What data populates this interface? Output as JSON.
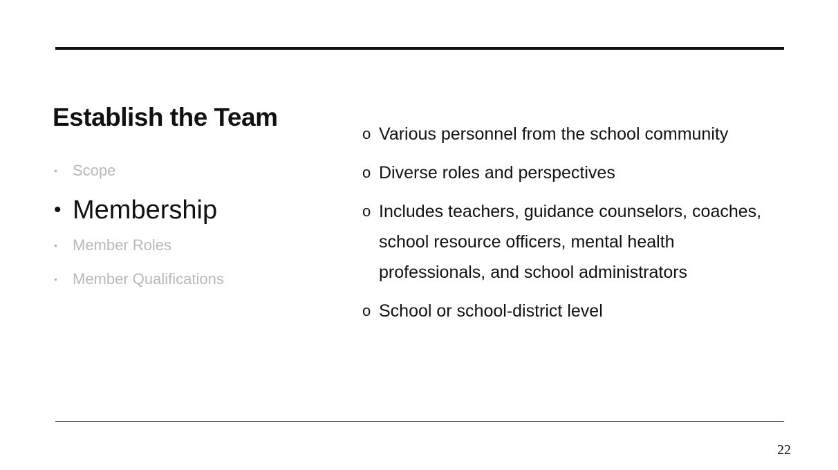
{
  "slide": {
    "title": "Establish the Team",
    "page_number": "22"
  },
  "nav": {
    "bullet_glyph": "•",
    "items": [
      {
        "label": "Scope",
        "state": "inactive"
      },
      {
        "label": "Membership",
        "state": "active"
      },
      {
        "label": "Member Roles",
        "state": "inactive"
      },
      {
        "label": "Member Qualifications",
        "state": "inactive"
      }
    ]
  },
  "content": {
    "marker_glyph": "o",
    "bullets": [
      {
        "text": "Various personnel from the school community"
      },
      {
        "text": "Diverse roles and perspectives"
      },
      {
        "text": "Includes teachers, guidance counselors, coaches, school resource officers, mental health professionals, and school administrators"
      },
      {
        "text": "School or school-district level"
      }
    ]
  },
  "colors": {
    "text": "#111111",
    "inactive": "#b8b8b8",
    "rule": "#111111",
    "background": "#ffffff"
  }
}
